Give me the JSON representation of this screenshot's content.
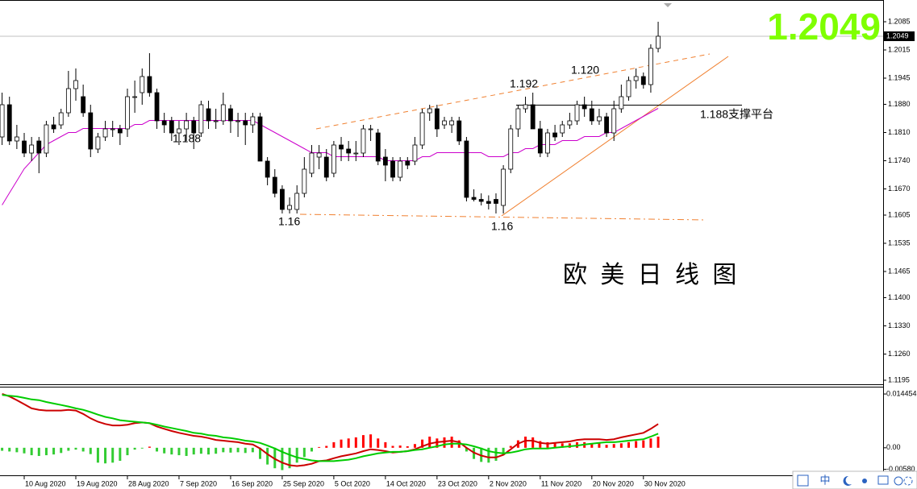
{
  "chart_data": [
    {
      "type": "candlestick",
      "title": "欧 美 日 线 图",
      "last_price": 1.2049,
      "categories": [
        null,
        null,
        null,
        "10 Aug 2020",
        null,
        null,
        null,
        null,
        null,
        null,
        "19 Aug 2020",
        null,
        null,
        null,
        null,
        null,
        null,
        "28 Aug 2020",
        null,
        null,
        null,
        null,
        null,
        null,
        "7 Sep 2020",
        null,
        null,
        null,
        null,
        null,
        null,
        "16 Sep 2020",
        null,
        null,
        null,
        null,
        null,
        null,
        "25 Sep 2020",
        null,
        null,
        null,
        null,
        null,
        null,
        "5 Oct 2020",
        null,
        null,
        null,
        null,
        null,
        null,
        "14 Oct 2020",
        null,
        null,
        null,
        null,
        null,
        null,
        "23 Oct 2020",
        null,
        null,
        null,
        null,
        null,
        null,
        "2 Nov 2020",
        null,
        null,
        null,
        null,
        null,
        null,
        "11 Nov 2020",
        null,
        null,
        null,
        null,
        null,
        null,
        "20 Nov 2020",
        null,
        null,
        null,
        null,
        null,
        null,
        "30 Nov 2020",
        null,
        null
      ],
      "up_color": "#ffffff",
      "down_color": "#000000",
      "edge_color": "#000000",
      "candles": [
        [
          1.1799,
          1.1909,
          1.1779,
          1.1879
        ],
        [
          1.1879,
          1.1899,
          1.1779,
          1.1789
        ],
        [
          1.1789,
          1.1829,
          1.1769,
          1.1799
        ],
        [
          1.1789,
          1.1809,
          1.1749,
          1.1759
        ],
        [
          1.1759,
          1.1799,
          1.1739,
          1.1779
        ],
        [
          1.1789,
          1.1799,
          1.1709,
          1.1759
        ],
        [
          1.1759,
          1.1839,
          1.1749,
          1.1829
        ],
        [
          1.1829,
          1.1849,
          1.1809,
          1.1819
        ],
        [
          1.1829,
          1.1869,
          1.1819,
          1.1859
        ],
        [
          1.1859,
          1.1963,
          1.1849,
          1.1919
        ],
        [
          1.1919,
          1.1969,
          1.1889,
          1.1939
        ],
        [
          1.1899,
          1.1929,
          1.1849,
          1.1859
        ],
        [
          1.1859,
          1.1879,
          1.1749,
          1.1769
        ],
        [
          1.1769,
          1.1809,
          1.1759,
          1.1799
        ],
        [
          1.1799,
          1.1839,
          1.1789,
          1.1819
        ],
        [
          1.1819,
          1.1839,
          1.1799,
          1.1819
        ],
        [
          1.1819,
          1.1829,
          1.1779,
          1.1809
        ],
        [
          1.1819,
          1.1919,
          1.1799,
          1.1899
        ],
        [
          1.1899,
          1.1939,
          1.1859,
          1.1899
        ],
        [
          1.1909,
          1.1969,
          1.1879,
          1.1949
        ],
        [
          1.1949,
          1.2007,
          1.1899,
          1.1909
        ],
        [
          1.1909,
          1.1919,
          1.1819,
          1.1839
        ],
        [
          1.1839,
          1.1859,
          1.1809,
          1.1829
        ],
        [
          1.1839,
          1.1849,
          1.1789,
          1.1809
        ],
        [
          1.1809,
          1.1839,
          1.1779,
          1.1819
        ],
        [
          1.1819,
          1.1859,
          1.1789,
          1.1839
        ],
        [
          1.1839,
          1.1849,
          1.1769,
          1.1809
        ],
        [
          1.1809,
          1.1889,
          1.1799,
          1.1879
        ],
        [
          1.1869,
          1.1889,
          1.1819,
          1.1839
        ],
        [
          1.1839,
          1.1869,
          1.1819,
          1.1839
        ],
        [
          1.1839,
          1.1909,
          1.1829,
          1.1879
        ],
        [
          1.1869,
          1.1879,
          1.1809,
          1.1839
        ],
        [
          1.1839,
          1.1859,
          1.1799,
          1.1839
        ],
        [
          1.1839,
          1.1859,
          1.1779,
          1.1829
        ],
        [
          1.1829,
          1.1859,
          1.1809,
          1.1849
        ],
        [
          1.1849,
          1.1859,
          1.1739,
          1.1739
        ],
        [
          1.1739,
          1.1749,
          1.1679,
          1.1699
        ],
        [
          1.1699,
          1.1719,
          1.1649,
          1.1659
        ],
        [
          1.1669,
          1.1679,
          1.1609,
          1.1619
        ],
        [
          1.1619,
          1.1649,
          1.1609,
          1.1629
        ],
        [
          1.1619,
          1.1679,
          1.1609,
          1.1659
        ],
        [
          1.1659,
          1.1749,
          1.1649,
          1.1719
        ],
        [
          1.1709,
          1.1779,
          1.1699,
          1.1759
        ],
        [
          1.1749,
          1.1779,
          1.1719,
          1.1759
        ],
        [
          1.1749,
          1.1769,
          1.1689,
          1.1699
        ],
        [
          1.1709,
          1.1789,
          1.1699,
          1.1779
        ],
        [
          1.1779,
          1.1799,
          1.1739,
          1.1769
        ],
        [
          1.1769,
          1.1789,
          1.1739,
          1.1759
        ],
        [
          1.1759,
          1.1789,
          1.1739,
          1.1759
        ],
        [
          1.1759,
          1.1829,
          1.1749,
          1.1819
        ],
        [
          1.1819,
          1.1829,
          1.1789,
          1.1819
        ],
        [
          1.1809,
          1.1819,
          1.1729,
          1.1739
        ],
        [
          1.1749,
          1.1769,
          1.1689,
          1.1729
        ],
        [
          1.1739,
          1.1749,
          1.1689,
          1.1699
        ],
        [
          1.1699,
          1.1749,
          1.1689,
          1.1739
        ],
        [
          1.1739,
          1.1749,
          1.1719,
          1.1729
        ],
        [
          1.1739,
          1.1799,
          1.1729,
          1.1779
        ],
        [
          1.1779,
          1.1869,
          1.1769,
          1.1859
        ],
        [
          1.1859,
          1.1879,
          1.1839,
          1.1869
        ],
        [
          1.1869,
          1.1879,
          1.1799,
          1.1819
        ],
        [
          1.1829,
          1.1849,
          1.1819,
          1.1839
        ],
        [
          1.1829,
          1.1849,
          1.1809,
          1.1839
        ],
        [
          1.1839,
          1.1849,
          1.1779,
          1.1789
        ],
        [
          1.1789,
          1.1799,
          1.1639,
          1.1649
        ],
        [
          1.1649,
          1.1669,
          1.1639,
          1.1644
        ],
        [
          1.1644,
          1.1659,
          1.1629,
          1.1639
        ],
        [
          1.1639,
          1.1654,
          1.1619,
          1.1634
        ],
        [
          1.1644,
          1.1659,
          1.1609,
          1.1634
        ],
        [
          1.1629,
          1.1729,
          1.1609,
          1.1719
        ],
        [
          1.1719,
          1.1829,
          1.1709,
          1.1819
        ],
        [
          1.1819,
          1.1879,
          1.1799,
          1.1869
        ],
        [
          1.1869,
          1.1899,
          1.1859,
          1.1879
        ],
        [
          1.1879,
          1.1909,
          1.1819,
          1.1819
        ],
        [
          1.1819,
          1.1839,
          1.1749,
          1.1759
        ],
        [
          1.1759,
          1.1819,
          1.1749,
          1.1809
        ],
        [
          1.1809,
          1.1829,
          1.1789,
          1.1799
        ],
        [
          1.1809,
          1.1839,
          1.1799,
          1.1829
        ],
        [
          1.1829,
          1.1859,
          1.1819,
          1.1839
        ],
        [
          1.1839,
          1.1889,
          1.1829,
          1.1879
        ],
        [
          1.1879,
          1.1899,
          1.1849,
          1.1869
        ],
        [
          1.1869,
          1.1889,
          1.1829,
          1.1839
        ],
        [
          1.1839,
          1.1869,
          1.1829,
          1.1849
        ],
        [
          1.1849,
          1.1859,
          1.1799,
          1.1809
        ],
        [
          1.1809,
          1.1889,
          1.1789,
          1.1869
        ],
        [
          1.1869,
          1.1929,
          1.1859,
          1.1899
        ],
        [
          1.1899,
          1.1949,
          1.1889,
          1.1939
        ],
        [
          1.1939,
          1.1969,
          1.1919,
          1.1949
        ],
        [
          1.1949,
          1.1959,
          1.1919,
          1.1929
        ],
        [
          1.1929,
          1.2029,
          1.1909,
          1.2019
        ],
        [
          1.2019,
          1.2085,
          1.2009,
          1.2049
        ]
      ],
      "moving_average": {
        "color": "#cc00cc",
        "values": [
          1.163,
          1.166,
          1.169,
          1.172,
          1.174,
          1.176,
          1.178,
          1.179,
          1.18,
          1.181,
          1.181,
          1.182,
          1.182,
          1.182,
          1.182,
          1.182,
          1.182,
          1.182,
          1.183,
          1.183,
          1.184,
          1.184,
          1.184,
          1.184,
          1.184,
          1.184,
          1.184,
          1.184,
          1.184,
          1.184,
          1.184,
          1.184,
          1.184,
          1.184,
          1.184,
          1.183,
          1.182,
          1.181,
          1.18,
          1.179,
          1.178,
          1.177,
          1.176,
          1.176,
          1.176,
          1.175,
          1.175,
          1.175,
          1.175,
          1.175,
          1.175,
          1.175,
          1.174,
          1.174,
          1.174,
          1.174,
          1.174,
          1.175,
          1.175,
          1.176,
          1.176,
          1.176,
          1.176,
          1.176,
          1.176,
          1.176,
          1.175,
          1.175,
          1.175,
          1.176,
          1.176,
          1.177,
          1.177,
          1.178,
          1.178,
          1.178,
          1.179,
          1.179,
          1.179,
          1.18,
          1.18,
          1.18,
          1.181,
          1.181,
          1.182,
          1.183,
          1.184,
          1.185,
          1.186,
          1.187
        ]
      },
      "ylim": [
        1.1185,
        1.2139
      ],
      "yticks": [
        1.2085,
        1.2015,
        1.1945,
        {
          "value": 1.188,
          "label": "1.1880"
        },
        {
          "value": 1.181,
          "label": "1.1810"
        },
        {
          "value": 1.174,
          "label": "1.1740"
        },
        {
          "value": 1.167,
          "label": "1.1670"
        },
        1.1605,
        1.1535,
        1.1465,
        {
          "value": 1.14,
          "label": "1.1400"
        },
        {
          "value": 1.133,
          "label": "1.1330"
        },
        {
          "value": 1.126,
          "label": "1.1260"
        },
        1.1195
      ],
      "annotations": [
        "1.188",
        "1.16",
        "1.16",
        "1.192",
        "1.120",
        "1.188支撑平台"
      ],
      "ime_label": "中"
    },
    {
      "type": "macd",
      "histogram": {
        "up_color": "#ff0000",
        "down_color": "#33cc33",
        "values": [
          -0.0008,
          -0.001,
          -0.0012,
          -0.0015,
          -0.002,
          -0.0022,
          -0.002,
          -0.0018,
          -0.0014,
          -0.0008,
          -0.0005,
          -0.001,
          -0.0017,
          -0.004,
          -0.0042,
          -0.004,
          -0.0035,
          -0.002,
          -0.0005,
          -0.0002,
          0.0003,
          -0.001,
          -0.0015,
          -0.0018,
          -0.002,
          -0.0022,
          -0.0018,
          -0.0016,
          -0.0018,
          -0.0016,
          -0.0012,
          -0.0013,
          -0.0012,
          -0.0014,
          -0.0012,
          -0.003,
          -0.0045,
          -0.0055,
          -0.006,
          -0.0055,
          -0.004,
          -0.0025,
          -0.001,
          0.0002,
          0.0005,
          0.0015,
          0.0022,
          0.0025,
          0.0028,
          0.0034,
          0.0036,
          0.0025,
          0.0015,
          0.0005,
          0.0006,
          0.0004,
          0.001,
          0.0022,
          0.003,
          0.0025,
          0.0028,
          0.003,
          0.002,
          -0.001,
          -0.003,
          -0.0038,
          -0.004,
          -0.0035,
          -0.002,
          0.0005,
          0.002,
          0.003,
          0.0028,
          0.0018,
          0.0015,
          0.0012,
          0.0012,
          0.0012,
          0.0015,
          0.0015,
          0.0012,
          0.0012,
          0.0008,
          0.001,
          0.0012,
          0.0015,
          0.0018,
          0.002,
          0.0025,
          0.003
        ]
      },
      "series": [
        {
          "color": "#cc0000",
          "values": [
            0.0145,
            0.0138,
            0.0128,
            0.0117,
            0.0106,
            0.0102,
            0.01,
            0.01,
            0.01,
            0.0102,
            0.01,
            0.0091,
            0.0079,
            0.007,
            0.0064,
            0.006,
            0.006,
            0.0062,
            0.0066,
            0.0068,
            0.0066,
            0.0057,
            0.0051,
            0.0045,
            0.004,
            0.0036,
            0.0032,
            0.003,
            0.0026,
            0.0021,
            0.0019,
            0.0017,
            0.0015,
            0.0011,
            0.0009,
            -0.0002,
            -0.0017,
            -0.003,
            -0.004,
            -0.0047,
            -0.0049,
            -0.0047,
            -0.0043,
            -0.0036,
            -0.0034,
            -0.0028,
            -0.0023,
            -0.0019,
            -0.0015,
            -0.0009,
            -0.0004,
            -0.0006,
            -0.0009,
            -0.0013,
            -0.0011,
            -0.0009,
            -0.0004,
            0.0004,
            0.0011,
            0.0015,
            0.0017,
            0.0019,
            0.0015,
            0.0,
            -0.0013,
            -0.0021,
            -0.0026,
            -0.0026,
            -0.0019,
            -0.0004,
            0.0011,
            0.0019,
            0.0019,
            0.0013,
            0.0011,
            0.0013,
            0.0015,
            0.0017,
            0.0021,
            0.0023,
            0.0023,
            0.0023,
            0.0021,
            0.0023,
            0.0028,
            0.0032,
            0.0036,
            0.004,
            0.0051,
            0.0064
          ]
        },
        {
          "color": "#00cc00",
          "values": [
            0.0142,
            0.014,
            0.0138,
            0.0134,
            0.013,
            0.0128,
            0.0123,
            0.0119,
            0.0115,
            0.0111,
            0.0106,
            0.0102,
            0.0096,
            0.0089,
            0.0083,
            0.0079,
            0.0074,
            0.0072,
            0.007,
            0.0068,
            0.0066,
            0.0062,
            0.0057,
            0.0053,
            0.0049,
            0.0045,
            0.004,
            0.0038,
            0.0034,
            0.0032,
            0.0028,
            0.0026,
            0.0023,
            0.0019,
            0.0017,
            0.0013,
            0.0006,
            -0.0002,
            -0.0011,
            -0.0019,
            -0.0026,
            -0.003,
            -0.0034,
            -0.0036,
            -0.0036,
            -0.0036,
            -0.0034,
            -0.0032,
            -0.0028,
            -0.0023,
            -0.0019,
            -0.0015,
            -0.0013,
            -0.0011,
            -0.0011,
            -0.0009,
            -0.0006,
            -0.0004,
            0.0,
            0.0004,
            0.0009,
            0.0011,
            0.0011,
            0.0009,
            0.0004,
            -0.0002,
            -0.0009,
            -0.0013,
            -0.0015,
            -0.0013,
            -0.0009,
            -0.0004,
            -0.0002,
            -0.0002,
            -0.0002,
            0.0,
            0.0002,
            0.0004,
            0.0006,
            0.0009,
            0.0011,
            0.0013,
            0.0015,
            0.0015,
            0.0017,
            0.0019,
            0.0021,
            0.0023,
            0.003,
            0.0038
          ]
        }
      ],
      "ylim": [
        -0.0074,
        0.0162
      ],
      "yticks": [
        0.014454,
        {
          "value": 0,
          "label": "0.00"
        },
        {
          "value": -0.0058,
          "label": "-0.00580"
        }
      ]
    }
  ]
}
